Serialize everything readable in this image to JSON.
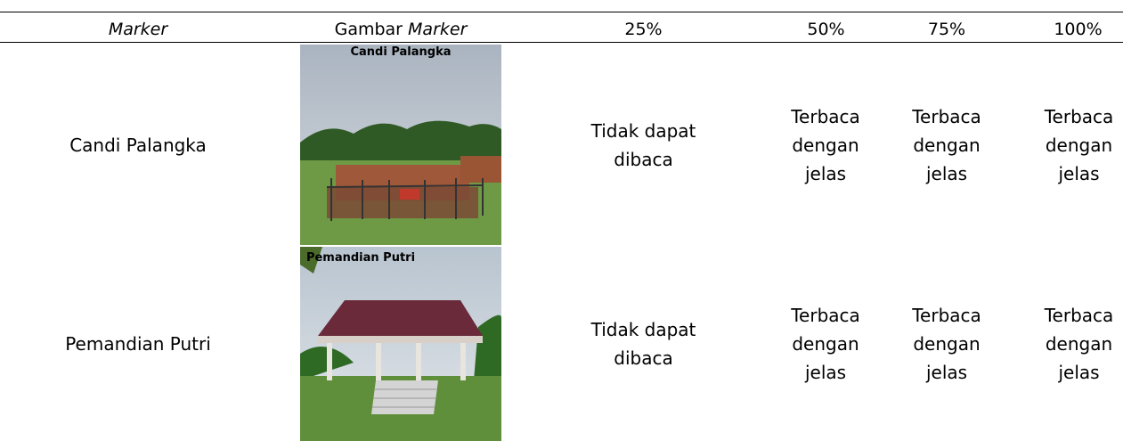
{
  "header": [
    "Marker",
    [
      "Gambar",
      "Marker"
    ],
    "25%",
    "50%",
    "75%",
    "100%"
  ],
  "rows": [
    {
      "marker": "Candi Palangka",
      "image_caption": "Candi Palangka",
      "cells": [
        "Tidak dapat dibaca",
        "Terbaca dengan jelas",
        "Terbaca dengan jelas",
        "Terbaca dengan jelas"
      ]
    },
    {
      "marker": "Pemandian Putri",
      "image_caption": "Pemandian Putri",
      "cells": [
        "Tidak dapat dibaca",
        "Terbaca dengan jelas",
        "Terbaca dengan jelas",
        "Terbaca dengan jelas"
      ]
    }
  ]
}
